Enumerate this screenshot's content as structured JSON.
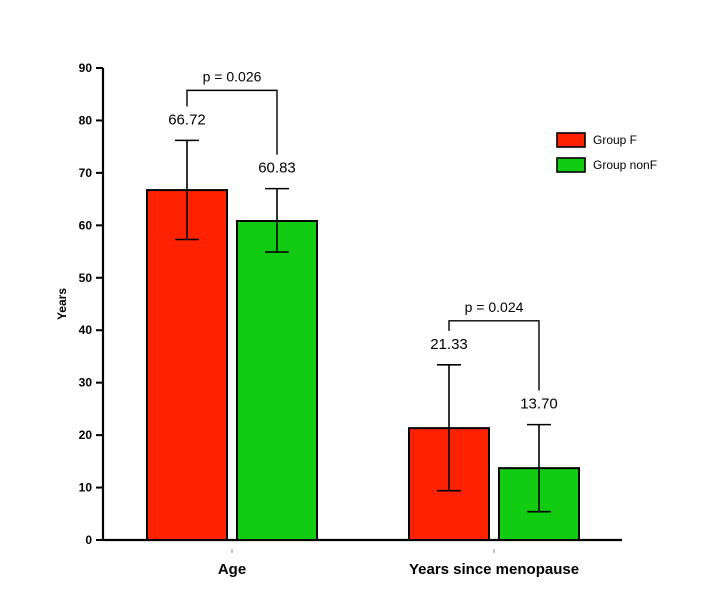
{
  "chart_data": {
    "type": "bar",
    "title": "",
    "xlabel": "",
    "ylabel": "Years",
    "ylim": [
      0,
      90
    ],
    "yticks": [
      "0",
      "10",
      "20",
      "30",
      "40",
      "50",
      "60",
      "70",
      "80",
      "90"
    ],
    "categories": [
      "Age",
      "Years since menopause"
    ],
    "series": [
      {
        "name": "Group F",
        "color": "#ff2200",
        "values": [
          66.72,
          21.33
        ],
        "value_labels": [
          "66.72",
          "21.33"
        ],
        "error_low": [
          57.3,
          9.4
        ],
        "error_high": [
          76.2,
          33.4
        ]
      },
      {
        "name": "Group nonF",
        "color": "#11cc11",
        "values": [
          60.83,
          13.7
        ],
        "value_labels": [
          "60.83",
          "13.70"
        ],
        "error_low": [
          54.9,
          5.4
        ],
        "error_high": [
          67.0,
          22.0
        ]
      }
    ],
    "annotations": [
      {
        "category_index": 0,
        "text": "p = 0.026"
      },
      {
        "category_index": 1,
        "text": "p = 0.024"
      }
    ],
    "legend_position": "right",
    "grid": false
  }
}
